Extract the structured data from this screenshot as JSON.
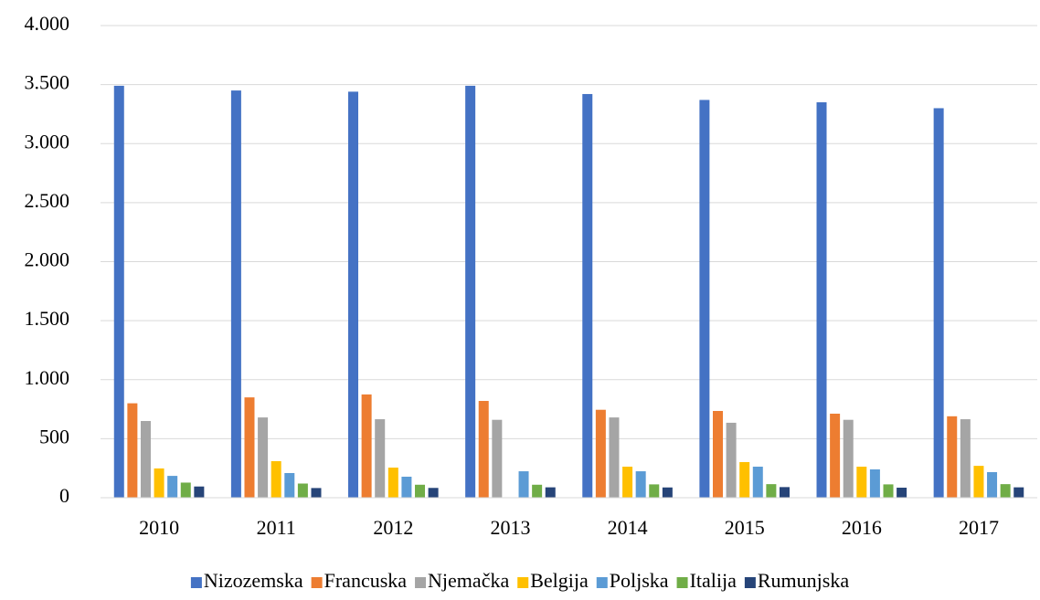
{
  "chart_data": {
    "type": "bar",
    "categories": [
      "2010",
      "2011",
      "2012",
      "2013",
      "2014",
      "2015",
      "2016",
      "2017"
    ],
    "series": [
      {
        "name": "Nizozemska",
        "color": "#4472c4",
        "values": [
          3490,
          3450,
          3440,
          3490,
          3420,
          3370,
          3350,
          3300
        ]
      },
      {
        "name": "Francuska",
        "color": "#ed7d31",
        "values": [
          800,
          850,
          875,
          820,
          745,
          735,
          712,
          690
        ]
      },
      {
        "name": "Njemačka",
        "color": "#a5a5a5",
        "values": [
          650,
          680,
          665,
          660,
          680,
          635,
          660,
          665
        ]
      },
      {
        "name": "Belgija",
        "color": "#ffc000",
        "values": [
          248,
          310,
          255,
          null,
          263,
          302,
          263,
          270
        ]
      },
      {
        "name": "Poljska",
        "color": "#5b9bd5",
        "values": [
          185,
          209,
          178,
          224,
          224,
          263,
          240,
          217
        ]
      },
      {
        "name": "Italija",
        "color": "#70ad47",
        "values": [
          128,
          120,
          110,
          110,
          113,
          115,
          113,
          115
        ]
      },
      {
        "name": "Rumunjska",
        "color": "#264478",
        "values": [
          95,
          82,
          83,
          88,
          87,
          90,
          85,
          88
        ]
      }
    ],
    "ylim": [
      0,
      4000
    ],
    "yticks": [
      0,
      500,
      {
        "value": 1000,
        "label": "1.000"
      },
      {
        "value": 1500,
        "label": "1.500"
      },
      {
        "value": 2000,
        "label": "2.000"
      },
      {
        "value": 2500,
        "label": "2.500"
      },
      {
        "value": 3000,
        "label": "3.000"
      },
      {
        "value": 3500,
        "label": "3.500"
      },
      {
        "value": 4000,
        "label": "4.000"
      }
    ],
    "grid": true,
    "legend": "bottom"
  }
}
